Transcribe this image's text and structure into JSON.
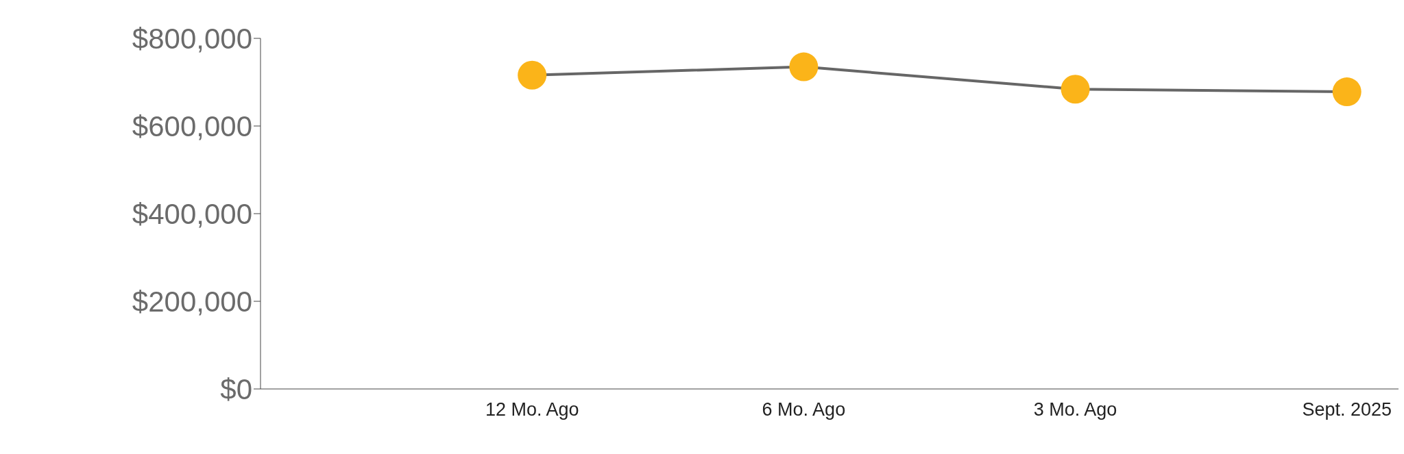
{
  "chart_data": {
    "type": "line",
    "categories": [
      null,
      "12 Mo. Ago",
      "6 Mo. Ago",
      "3 Mo. Ago",
      "Sept. 2025"
    ],
    "series": [
      {
        "color": "#666666",
        "colors": [
          null,
          "#fbb419",
          "#fbb419",
          "#fbb419",
          "#fbb419"
        ],
        "values": [
          null,
          716000,
          735000,
          684000,
          678000
        ]
      }
    ],
    "marker": "circle",
    "ylim": [
      0,
      800000
    ],
    "yticks": [
      {
        "value": 0,
        "label": "$0"
      },
      {
        "value": 200000,
        "label": "$200,000"
      },
      {
        "value": 400000,
        "label": "$400,000"
      },
      {
        "value": 600000,
        "label": "$600,000"
      },
      {
        "value": 800000,
        "label": "$800,000"
      }
    ]
  }
}
